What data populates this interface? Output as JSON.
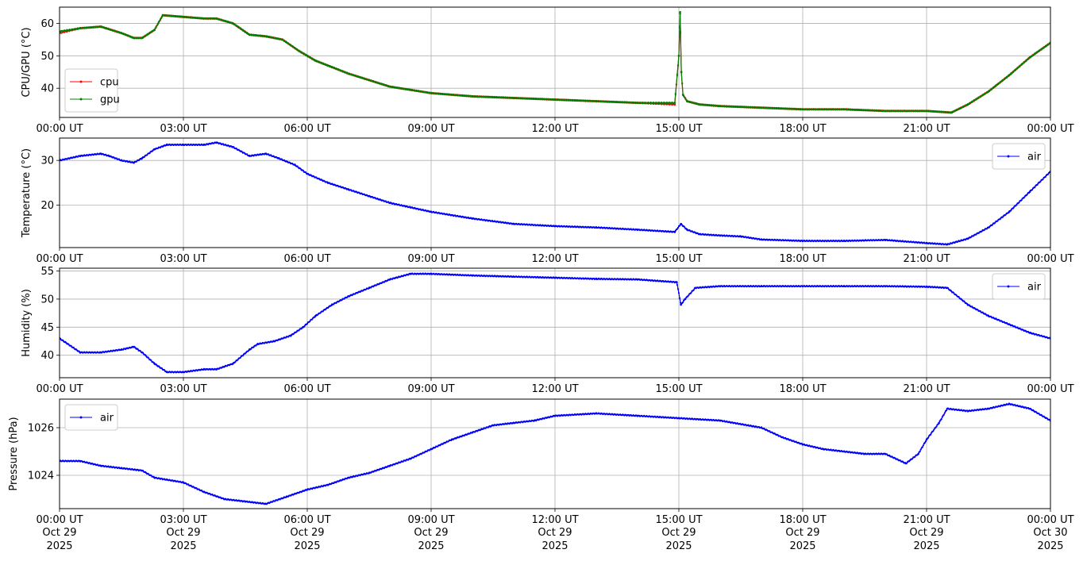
{
  "figure": {
    "x_start": "00:00 UT Oct 29 2025",
    "x_end": "00:00 UT Oct 30 2025"
  },
  "x_ticks": {
    "labels": [
      "00:00 UT",
      "03:00 UT",
      "06:00 UT",
      "09:00 UT",
      "12:00 UT",
      "15:00 UT",
      "18:00 UT",
      "21:00 UT",
      "00:00 UT"
    ],
    "dates": [
      "Oct 29",
      "Oct 29",
      "Oct 29",
      "Oct 29",
      "Oct 29",
      "Oct 29",
      "Oct 29",
      "Oct 29",
      "Oct 30"
    ],
    "years": [
      "2025",
      "2025",
      "2025",
      "2025",
      "2025",
      "2025",
      "2025",
      "2025",
      "2025"
    ]
  },
  "colors": {
    "cpu": "#ff0000",
    "gpu": "#008000",
    "air": "#0000ff",
    "grid": "#b0b0b0"
  },
  "chart_data": [
    {
      "type": "line",
      "ylabel": "CPU/GPU (°C)",
      "ylim": [
        31,
        65
      ],
      "y_ticks": [
        40,
        50,
        60
      ],
      "xlim": [
        0,
        24
      ],
      "grid": true,
      "legend_placement": "lower-left",
      "series": [
        {
          "name": "cpu",
          "color": "#ff0000",
          "x": [
            0,
            0.5,
            1.0,
            1.5,
            1.8,
            2.0,
            2.3,
            2.5,
            3.0,
            3.5,
            3.8,
            4.2,
            4.6,
            5.0,
            5.4,
            5.8,
            6.2,
            6.6,
            7.0,
            7.5,
            8.0,
            8.5,
            9.0,
            9.5,
            10,
            11,
            12,
            13,
            14,
            14.9,
            15.0,
            15.03,
            15.06,
            15.1,
            15.2,
            15.5,
            16,
            17,
            18,
            19,
            20,
            21,
            21.6,
            22,
            22.5,
            23,
            23.5,
            24
          ],
          "y": [
            57,
            58.5,
            59,
            57,
            55.5,
            55.5,
            58,
            62.5,
            62,
            61.5,
            61.5,
            60,
            56.5,
            56,
            55,
            51.5,
            48.5,
            46.5,
            44.5,
            42.5,
            40.5,
            39.5,
            38.5,
            38,
            37.5,
            37,
            36.5,
            36,
            35.5,
            35,
            50,
            63,
            45,
            38,
            36,
            35,
            34.5,
            34,
            33.5,
            33.5,
            33,
            33,
            32.5,
            35,
            39,
            44,
            49.5,
            54
          ]
        },
        {
          "name": "gpu",
          "color": "#008000",
          "x": [
            0,
            0.5,
            1.0,
            1.5,
            1.8,
            2.0,
            2.3,
            2.5,
            3.0,
            3.5,
            3.8,
            4.2,
            4.6,
            5.0,
            5.4,
            5.8,
            6.2,
            6.6,
            7.0,
            7.5,
            8.0,
            8.5,
            9.0,
            9.5,
            10,
            11,
            12,
            13,
            14,
            14.9,
            15.0,
            15.03,
            15.06,
            15.1,
            15.2,
            15.5,
            16,
            17,
            18,
            19,
            20,
            21,
            21.6,
            22,
            22.5,
            23,
            23.5,
            24
          ],
          "y": [
            57.5,
            58.5,
            59,
            57,
            55.5,
            55.5,
            58,
            62.5,
            62,
            61.5,
            61.5,
            60,
            56.5,
            56,
            55,
            51.5,
            48.5,
            46.5,
            44.5,
            42.5,
            40.5,
            39.5,
            38.5,
            38,
            37.5,
            37,
            36.5,
            36,
            35.5,
            35.5,
            50,
            63.5,
            45,
            38,
            36,
            35,
            34.5,
            34,
            33.5,
            33.5,
            33,
            33,
            32.5,
            35,
            39,
            44,
            49.5,
            54
          ]
        }
      ]
    },
    {
      "type": "line",
      "ylabel": "Temperature (°C)",
      "ylim": [
        10.5,
        35
      ],
      "y_ticks": [
        20,
        30
      ],
      "xlim": [
        0,
        24
      ],
      "grid": true,
      "legend_placement": "upper-right",
      "series": [
        {
          "name": "air",
          "color": "#0000ff",
          "x": [
            0,
            0.5,
            1.0,
            1.2,
            1.5,
            1.8,
            2.0,
            2.3,
            2.6,
            3.0,
            3.5,
            3.8,
            4.2,
            4.6,
            5.0,
            5.3,
            5.7,
            6.0,
            6.5,
            7.0,
            7.5,
            8.0,
            8.5,
            9.0,
            10,
            11,
            12,
            13,
            14,
            14.9,
            15.05,
            15.2,
            15.5,
            16,
            16.5,
            17,
            18,
            19,
            20,
            21,
            21.5,
            22,
            22.5,
            23,
            23.5,
            24
          ],
          "y": [
            30,
            31,
            31.5,
            31,
            30,
            29.5,
            30.5,
            32.5,
            33.5,
            33.5,
            33.5,
            34,
            33,
            31,
            31.5,
            30.5,
            29,
            27,
            25,
            23.5,
            22,
            20.5,
            19.5,
            18.5,
            17,
            15.8,
            15.3,
            15,
            14.5,
            14,
            15.8,
            14.5,
            13.5,
            13.2,
            13,
            12.3,
            12,
            12,
            12.2,
            11.5,
            11.2,
            12.5,
            15,
            18.5,
            23,
            27.5
          ]
        }
      ]
    },
    {
      "type": "line",
      "ylabel": "Humidity (%)",
      "ylim": [
        36,
        55.5
      ],
      "y_ticks": [
        40,
        45,
        50,
        55
      ],
      "xlim": [
        0,
        24
      ],
      "grid": true,
      "legend_placement": "upper-right",
      "series": [
        {
          "name": "air",
          "color": "#0000ff",
          "x": [
            0,
            0.5,
            1.0,
            1.5,
            1.8,
            2.0,
            2.3,
            2.6,
            3.0,
            3.5,
            3.8,
            4.2,
            4.6,
            4.8,
            5.2,
            5.6,
            5.9,
            6.2,
            6.6,
            7.0,
            7.5,
            8.0,
            8.5,
            9.0,
            10,
            11,
            12,
            13,
            14,
            14.95,
            15.05,
            15.15,
            15.4,
            16,
            17,
            18,
            19,
            20,
            21,
            21.5,
            22,
            22.5,
            23,
            23.5,
            24
          ],
          "y": [
            43,
            40.5,
            40.5,
            41,
            41.5,
            40.5,
            38.5,
            37,
            37,
            37.5,
            37.5,
            38.5,
            41,
            42,
            42.5,
            43.5,
            45,
            47,
            49,
            50.5,
            52,
            53.5,
            54.5,
            54.5,
            54.2,
            54,
            53.8,
            53.6,
            53.5,
            53,
            49,
            50,
            52,
            52.3,
            52.3,
            52.3,
            52.3,
            52.3,
            52.2,
            52,
            49,
            47,
            45.5,
            44,
            43
          ]
        }
      ]
    },
    {
      "type": "line",
      "ylabel": "Pressure (hPa)",
      "ylim": [
        1022.6,
        1027.2
      ],
      "y_ticks": [
        1024,
        1026
      ],
      "xlim": [
        0,
        24
      ],
      "grid": true,
      "legend_placement": "upper-left",
      "series": [
        {
          "name": "air",
          "color": "#0000ff",
          "x": [
            0,
            0.5,
            1.0,
            1.5,
            2.0,
            2.3,
            3.0,
            3.5,
            4.0,
            4.5,
            5.0,
            5.5,
            6.0,
            6.5,
            7.0,
            7.5,
            8.0,
            8.5,
            9.0,
            9.5,
            10,
            10.5,
            11,
            11.5,
            12,
            13,
            14,
            15,
            16,
            17,
            17.5,
            18,
            18.5,
            19,
            19.5,
            20,
            20.5,
            20.8,
            21,
            21.3,
            21.5,
            22,
            22.5,
            23,
            23.5,
            24
          ],
          "y": [
            1024.6,
            1024.6,
            1024.4,
            1024.3,
            1024.2,
            1023.9,
            1023.7,
            1023.3,
            1023.0,
            1022.9,
            1022.8,
            1023.1,
            1023.4,
            1023.6,
            1023.9,
            1024.1,
            1024.4,
            1024.7,
            1025.1,
            1025.5,
            1025.8,
            1026.1,
            1026.2,
            1026.3,
            1026.5,
            1026.6,
            1026.5,
            1026.4,
            1026.3,
            1026.0,
            1025.6,
            1025.3,
            1025.1,
            1025.0,
            1024.9,
            1024.9,
            1024.5,
            1024.9,
            1025.5,
            1026.2,
            1026.8,
            1026.7,
            1026.8,
            1027.0,
            1026.8,
            1026.3
          ]
        }
      ]
    }
  ]
}
